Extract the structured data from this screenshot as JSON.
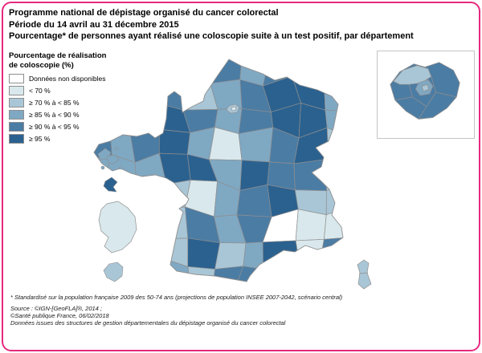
{
  "title": {
    "line1": "Programme national de dépistage organisé du cancer colorectal",
    "line2": "Période du 14 avril au 31 décembre 2015",
    "line3": "Pourcentage* de personnes ayant réalisé une coloscopie suite à un test positif, par département"
  },
  "legend": {
    "title_line1": "Pourcentage de réalisation",
    "title_line2": "de coloscopie (%)",
    "classes": [
      {
        "label": "Données non disponibles",
        "color": "#ffffff"
      },
      {
        "label": "< 70 %",
        "color": "#d9e8ec"
      },
      {
        "label": "≥ 70 % à < 85 %",
        "color": "#a9c6d6"
      },
      {
        "label": "≥ 85 % à < 90 %",
        "color": "#7fa8c3"
      },
      {
        "label": "≥ 90 % à < 95 %",
        "color": "#4b7ca4"
      },
      {
        "label": "≥ 95 %",
        "color": "#2b618f"
      }
    ]
  },
  "map": {
    "stroke_color": "#8f8f8f",
    "sea_color": "#ffffff",
    "grid_categories": [
      [
        3,
        3,
        3,
        3,
        3,
        4,
        3,
        4,
        3,
        3
      ],
      [
        4,
        4,
        4,
        4,
        2,
        3,
        4,
        5,
        5,
        3
      ],
      [
        4,
        4,
        4,
        5,
        4,
        3,
        4,
        5,
        5,
        3
      ],
      [
        4,
        3,
        4,
        5,
        3,
        1,
        3,
        4,
        5,
        2
      ],
      [
        3,
        3,
        3,
        5,
        5,
        3,
        5,
        4,
        4,
        2
      ],
      [
        3,
        3,
        3,
        2,
        1,
        3,
        4,
        5,
        2,
        2
      ],
      [
        3,
        3,
        3,
        2,
        4,
        3,
        4,
        0,
        1,
        1
      ],
      [
        3,
        3,
        3,
        2,
        5,
        2,
        3,
        5,
        1,
        4
      ],
      [
        3,
        3,
        3,
        3,
        2,
        4,
        4,
        4,
        5,
        4
      ]
    ],
    "regions": {
      "corse": 2,
      "guadeloupe": 3,
      "martinique": 5,
      "guyane": 1,
      "reunion": 2,
      "paris_petite_couronne": 2
    },
    "inset_idf": {
      "main": 4,
      "val_doise": 2,
      "petite_couronne": 3,
      "paris": 2
    }
  },
  "footnotes": {
    "standardise": "* Standardisé sur la population française 2009 des 50-74 ans (projections de population INSEE 2007-2042, scénario central)",
    "source_line1": "Source : ©IGN-[GeoFLA]®, 2014 ;",
    "source_line2": "©Santé publique France, 06/02/2018",
    "source_line3": "Données issues des structures de gestion départementales du dépistage organisé du cancer colorectal"
  },
  "colors": {
    "frame_border": "#e6297f",
    "inset_border": "#c4c4c4"
  }
}
